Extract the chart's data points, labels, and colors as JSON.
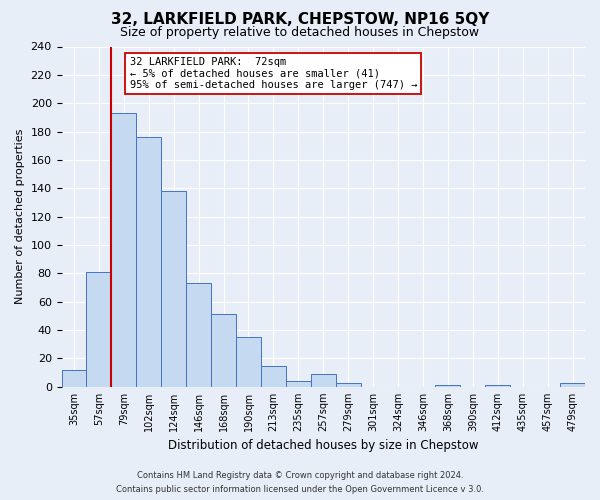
{
  "title": "32, LARKFIELD PARK, CHEPSTOW, NP16 5QY",
  "subtitle": "Size of property relative to detached houses in Chepstow",
  "xlabel": "Distribution of detached houses by size in Chepstow",
  "ylabel": "Number of detached properties",
  "bin_labels": [
    "35sqm",
    "57sqm",
    "79sqm",
    "102sqm",
    "124sqm",
    "146sqm",
    "168sqm",
    "190sqm",
    "213sqm",
    "235sqm",
    "257sqm",
    "279sqm",
    "301sqm",
    "324sqm",
    "346sqm",
    "368sqm",
    "390sqm",
    "412sqm",
    "435sqm",
    "457sqm",
    "479sqm"
  ],
  "bar_heights": [
    12,
    81,
    193,
    176,
    138,
    73,
    51,
    35,
    15,
    4,
    9,
    3,
    0,
    0,
    0,
    1,
    0,
    1,
    0,
    0,
    3
  ],
  "bar_color": "#c5d9f0",
  "bar_edge_color": "#4472c4",
  "vline_color": "#cc0000",
  "vline_bin_index": 2,
  "ylim": [
    0,
    240
  ],
  "yticks": [
    0,
    20,
    40,
    60,
    80,
    100,
    120,
    140,
    160,
    180,
    200,
    220,
    240
  ],
  "annotation_box_text": "32 LARKFIELD PARK:  72sqm\n← 5% of detached houses are smaller (41)\n95% of semi-detached houses are larger (747) →",
  "annotation_box_color": "#ffffff",
  "annotation_box_edge_color": "#cc0000",
  "footer_line1": "Contains HM Land Registry data © Crown copyright and database right 2024.",
  "footer_line2": "Contains public sector information licensed under the Open Government Licence v 3.0.",
  "background_color": "#e8eef7",
  "plot_bg_color": "#e8eef7",
  "grid_color": "#ffffff",
  "title_fontsize": 11,
  "subtitle_fontsize": 9,
  "ylabel_fontsize": 8,
  "xlabel_fontsize": 8.5,
  "ytick_fontsize": 8,
  "xtick_fontsize": 7,
  "annotation_fontsize": 7.5,
  "footer_fontsize": 6
}
